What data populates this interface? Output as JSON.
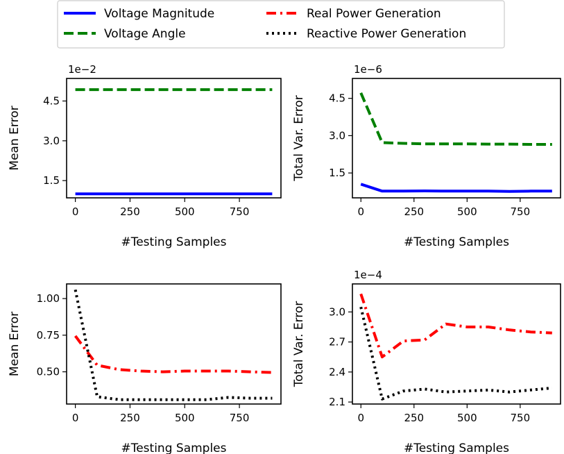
{
  "legend": {
    "entries": [
      {
        "label": "Voltage Magnitude",
        "color": "#0000ff",
        "style": "solid"
      },
      {
        "label": "Voltage Angle",
        "color": "#008000",
        "style": "dashed"
      },
      {
        "label": "Real Power Generation",
        "color": "#ff0000",
        "style": "dashdot"
      },
      {
        "label": "Reactive Power Generation",
        "color": "#000000",
        "style": "dotted"
      }
    ],
    "placement": "top-center"
  },
  "chart_data": [
    {
      "type": "line",
      "xlabel": "#Testing Samples",
      "ylabel": "Mean Error",
      "offset_text": "1e−2",
      "xlim": [
        -40,
        940
      ],
      "ylim": [
        0.85,
        5.35
      ],
      "xticks": [
        0,
        250,
        500,
        750
      ],
      "yticks": [
        1.5,
        3.0,
        4.5
      ],
      "ytick_labels": [
        "1.5",
        "3.0",
        "4.5"
      ],
      "series": [
        {
          "name": "Voltage Magnitude",
          "color": "#0000ff",
          "style": "solid",
          "x": [
            0,
            100,
            200,
            300,
            400,
            500,
            600,
            700,
            800,
            900
          ],
          "y": [
            1.0,
            1.0,
            1.0,
            1.0,
            1.0,
            1.0,
            1.0,
            1.0,
            1.0,
            1.0
          ]
        },
        {
          "name": "Voltage Angle",
          "color": "#008000",
          "style": "dashed",
          "x": [
            0,
            100,
            200,
            300,
            400,
            500,
            600,
            700,
            800,
            900
          ],
          "y": [
            4.93,
            4.93,
            4.93,
            4.93,
            4.93,
            4.93,
            4.93,
            4.93,
            4.93,
            4.93
          ]
        }
      ]
    },
    {
      "type": "line",
      "xlabel": "#Testing Samples",
      "ylabel": "Total Var. Error",
      "offset_text": "1e−6",
      "xlim": [
        -40,
        940
      ],
      "ylim": [
        0.5,
        5.3
      ],
      "xticks": [
        0,
        250,
        500,
        750
      ],
      "yticks": [
        1.5,
        3.0,
        4.5
      ],
      "ytick_labels": [
        "1.5",
        "3.0",
        "4.5"
      ],
      "series": [
        {
          "name": "Voltage Magnitude",
          "color": "#0000ff",
          "style": "solid",
          "x": [
            0,
            100,
            200,
            300,
            400,
            500,
            600,
            700,
            800,
            900
          ],
          "y": [
            1.05,
            0.77,
            0.77,
            0.78,
            0.77,
            0.77,
            0.77,
            0.76,
            0.77,
            0.77
          ]
        },
        {
          "name": "Voltage Angle",
          "color": "#008000",
          "style": "dashed",
          "x": [
            0,
            100,
            200,
            300,
            400,
            500,
            600,
            700,
            800,
            900
          ],
          "y": [
            4.72,
            2.72,
            2.69,
            2.67,
            2.67,
            2.67,
            2.66,
            2.66,
            2.65,
            2.65
          ]
        }
      ]
    },
    {
      "type": "line",
      "xlabel": "#Testing Samples",
      "ylabel": "Mean Error",
      "offset_text": "",
      "xlim": [
        -40,
        940
      ],
      "ylim": [
        0.28,
        1.1
      ],
      "xticks": [
        0,
        250,
        500,
        750
      ],
      "yticks": [
        0.5,
        0.75,
        1.0
      ],
      "ytick_labels": [
        "0.50",
        "0.75",
        "1.00"
      ],
      "series": [
        {
          "name": "Real Power Generation",
          "color": "#ff0000",
          "style": "dashdot",
          "x": [
            0,
            100,
            200,
            300,
            400,
            500,
            600,
            700,
            800,
            900
          ],
          "y": [
            0.745,
            0.545,
            0.515,
            0.505,
            0.5,
            0.505,
            0.505,
            0.505,
            0.5,
            0.495
          ]
        },
        {
          "name": "Reactive Power Generation",
          "color": "#000000",
          "style": "dotted",
          "x": [
            0,
            100,
            200,
            300,
            400,
            500,
            600,
            700,
            800,
            900
          ],
          "y": [
            1.06,
            0.33,
            0.31,
            0.31,
            0.31,
            0.31,
            0.31,
            0.325,
            0.32,
            0.32
          ]
        }
      ]
    },
    {
      "type": "line",
      "xlabel": "#Testing Samples",
      "ylabel": "Total Var. Error",
      "offset_text": "1e−4",
      "xlim": [
        -40,
        940
      ],
      "ylim": [
        2.08,
        3.28
      ],
      "xticks": [
        0,
        250,
        500,
        750
      ],
      "yticks": [
        2.1,
        2.4,
        2.7,
        3.0
      ],
      "ytick_labels": [
        "2.1",
        "2.4",
        "2.7",
        "3.0"
      ],
      "series": [
        {
          "name": "Real Power Generation",
          "color": "#ff0000",
          "style": "dashdot",
          "x": [
            0,
            100,
            200,
            300,
            400,
            500,
            600,
            700,
            800,
            900
          ],
          "y": [
            3.18,
            2.55,
            2.71,
            2.72,
            2.88,
            2.85,
            2.85,
            2.82,
            2.8,
            2.79
          ]
        },
        {
          "name": "Reactive Power Generation",
          "color": "#000000",
          "style": "dotted",
          "x": [
            0,
            100,
            200,
            300,
            400,
            500,
            600,
            700,
            800,
            900
          ],
          "y": [
            3.05,
            2.13,
            2.21,
            2.23,
            2.2,
            2.21,
            2.22,
            2.2,
            2.22,
            2.24
          ]
        }
      ]
    }
  ]
}
